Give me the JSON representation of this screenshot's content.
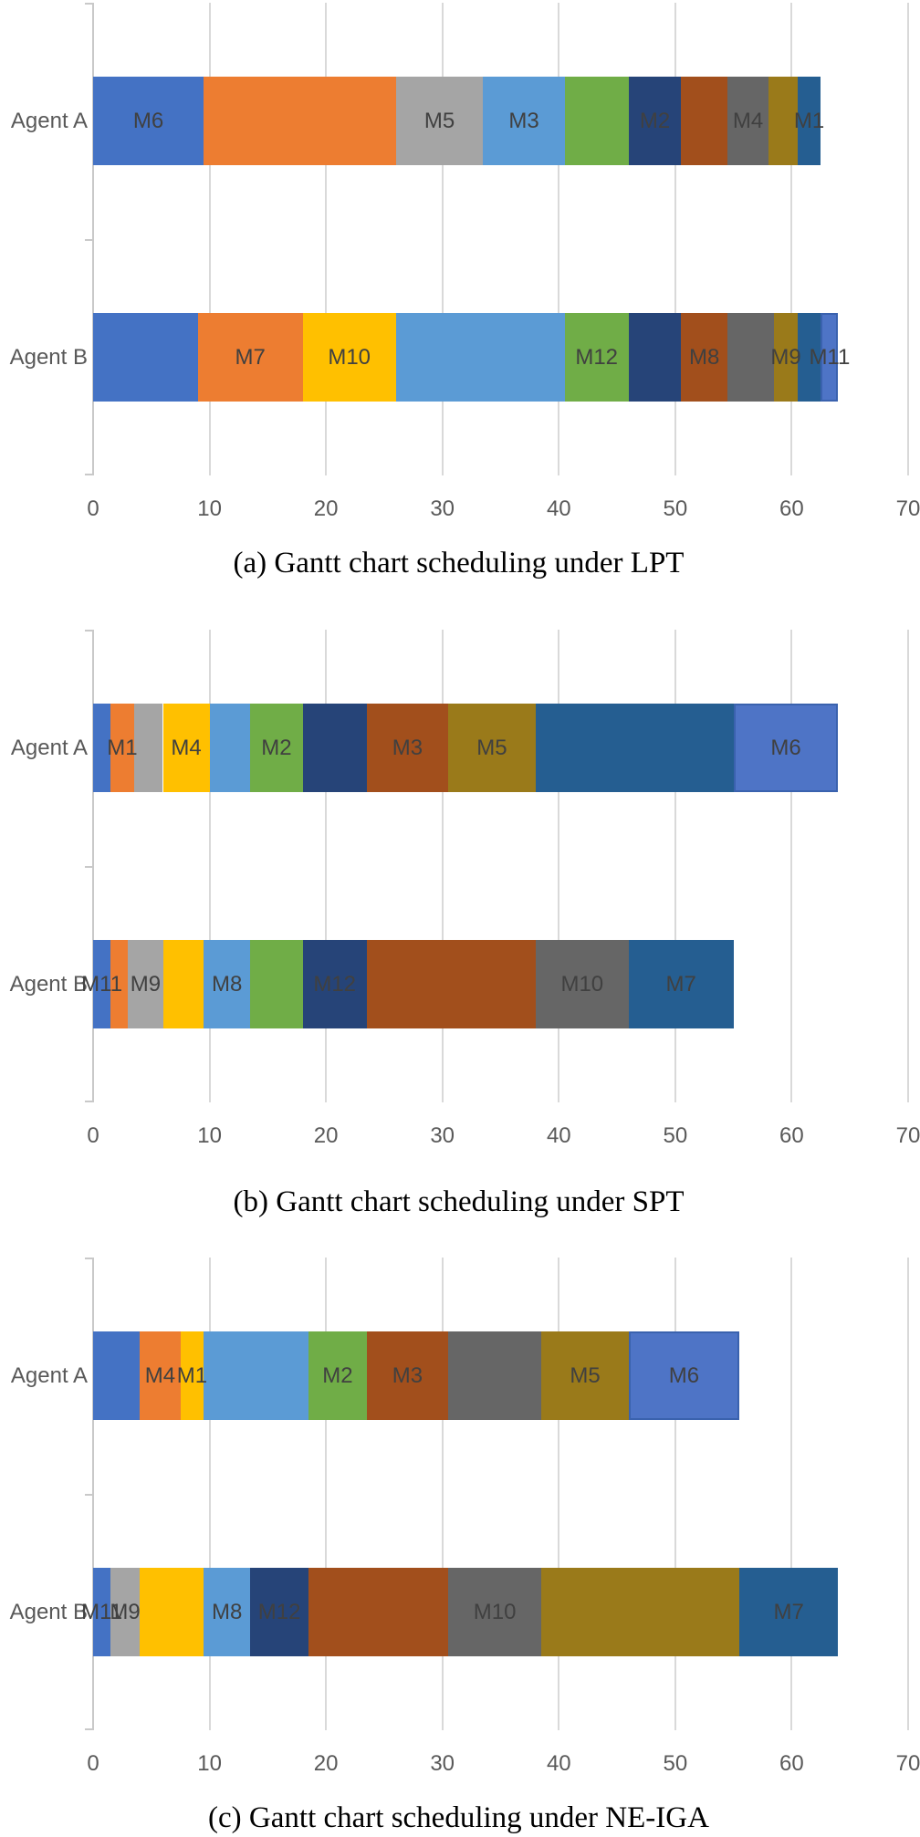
{
  "page_background": "#FFFFFF",
  "palette": {
    "blue": "#4472C4",
    "orange": "#ED7D31",
    "gray": "#A5A5A5",
    "yellow": "#FFC000",
    "lightblue": "#5B9BD5",
    "green": "#70AD47",
    "navy": "#264478",
    "darkred": "#A24F1C",
    "darkgray": "#666666",
    "olive": "#9A7A1A",
    "steel": "#255E91",
    "blue2": "#4E74C6",
    "gridline": "#D9D9D9",
    "axis": "#C9C9C9",
    "segment_label_text": "#404040",
    "axis_text": "#595959",
    "caption_text": "#000000"
  },
  "chart_data": [
    {
      "id": "a",
      "type": "bar",
      "stacked": true,
      "orientation": "horizontal",
      "title": "(a) Gantt chart scheduling under LPT",
      "xlim": [
        0,
        70
      ],
      "xticks": [
        0,
        10,
        20,
        30,
        40,
        50,
        60,
        70
      ],
      "grid": true,
      "legend": "none",
      "categories": [
        "Agent A",
        "Agent B"
      ],
      "bars": [
        {
          "category": "Agent A",
          "segments": [
            {
              "label": "M6",
              "color": "blue",
              "start": 0,
              "end": 9.5
            },
            {
              "label": "",
              "color": "orange",
              "start": 9.5,
              "end": 26
            },
            {
              "label": "M5",
              "color": "gray",
              "start": 26,
              "end": 33.5
            },
            {
              "label": "M3",
              "color": "lightblue",
              "start": 33.5,
              "end": 40.5
            },
            {
              "label": "",
              "color": "green",
              "start": 40.5,
              "end": 46
            },
            {
              "label": "M2",
              "color": "navy",
              "start": 46,
              "end": 50.5
            },
            {
              "label": "",
              "color": "darkred",
              "start": 50.5,
              "end": 54.5
            },
            {
              "label": "M4",
              "color": "darkgray",
              "start": 54.5,
              "end": 58
            },
            {
              "label": "",
              "color": "olive",
              "start": 58,
              "end": 60.5
            },
            {
              "label": "M1",
              "color": "steel",
              "start": 60.5,
              "end": 62.5
            }
          ]
        },
        {
          "category": "Agent B",
          "segments": [
            {
              "label": "",
              "color": "blue",
              "start": 0,
              "end": 9
            },
            {
              "label": "M7",
              "color": "orange",
              "start": 9,
              "end": 18
            },
            {
              "label": "M10",
              "color": "yellow",
              "start": 18,
              "end": 26
            },
            {
              "label": "",
              "color": "lightblue",
              "start": 26,
              "end": 40.5
            },
            {
              "label": "M12",
              "color": "green",
              "start": 40.5,
              "end": 46
            },
            {
              "label": "",
              "color": "navy",
              "start": 46,
              "end": 50.5
            },
            {
              "label": "M8",
              "color": "darkred",
              "start": 50.5,
              "end": 54.5
            },
            {
              "label": "",
              "color": "darkgray",
              "start": 54.5,
              "end": 58.5
            },
            {
              "label": "M9",
              "color": "olive",
              "start": 58.5,
              "end": 60.5
            },
            {
              "label": "",
              "color": "steel",
              "start": 60.5,
              "end": 62.5
            },
            {
              "label": "M11",
              "color": "blue2",
              "start": 62.5,
              "end": 64
            }
          ]
        }
      ]
    },
    {
      "id": "b",
      "type": "bar",
      "stacked": true,
      "orientation": "horizontal",
      "title": "(b) Gantt chart scheduling under SPT",
      "xlim": [
        0,
        70
      ],
      "xticks": [
        0,
        10,
        20,
        30,
        40,
        50,
        60,
        70
      ],
      "grid": true,
      "legend": "none",
      "categories": [
        "Agent A",
        "Agent B"
      ],
      "bars": [
        {
          "category": "Agent A",
          "segments": [
            {
              "label": "",
              "color": "blue",
              "start": 0,
              "end": 1.5
            },
            {
              "label": "M1",
              "color": "orange",
              "start": 1.5,
              "end": 3.5
            },
            {
              "label": "",
              "color": "gray",
              "start": 3.5,
              "end": 6
            },
            {
              "label": "M4",
              "color": "yellow",
              "start": 6,
              "end": 10
            },
            {
              "label": "",
              "color": "lightblue",
              "start": 10,
              "end": 13.5
            },
            {
              "label": "M2",
              "color": "green",
              "start": 13.5,
              "end": 18
            },
            {
              "label": "",
              "color": "navy",
              "start": 18,
              "end": 23.5
            },
            {
              "label": "M3",
              "color": "darkred",
              "start": 23.5,
              "end": 30.5
            },
            {
              "label": "M5",
              "color": "olive",
              "start": 30.5,
              "end": 38
            },
            {
              "label": "",
              "color": "steel",
              "start": 38,
              "end": 55
            },
            {
              "label": "M6",
              "color": "blue2",
              "start": 55,
              "end": 64
            }
          ]
        },
        {
          "category": "Agent B",
          "segments": [
            {
              "label": "M11",
              "color": "blue",
              "start": 0,
              "end": 1.5
            },
            {
              "label": "",
              "color": "orange",
              "start": 1.5,
              "end": 3
            },
            {
              "label": "M9",
              "color": "gray",
              "start": 3,
              "end": 6
            },
            {
              "label": "",
              "color": "yellow",
              "start": 6,
              "end": 9.5
            },
            {
              "label": "M8",
              "color": "lightblue",
              "start": 9.5,
              "end": 13.5
            },
            {
              "label": "",
              "color": "green",
              "start": 13.5,
              "end": 18
            },
            {
              "label": "M12",
              "color": "navy",
              "start": 18,
              "end": 23.5
            },
            {
              "label": "",
              "color": "darkred",
              "start": 23.5,
              "end": 38
            },
            {
              "label": "M10",
              "color": "darkgray",
              "start": 38,
              "end": 46
            },
            {
              "label": "M7",
              "color": "steel",
              "start": 46,
              "end": 55
            }
          ]
        }
      ]
    },
    {
      "id": "c",
      "type": "bar",
      "stacked": true,
      "orientation": "horizontal",
      "title": "(c) Gantt chart scheduling under NE-IGA",
      "xlim": [
        0,
        70
      ],
      "xticks": [
        0,
        10,
        20,
        30,
        40,
        50,
        60,
        70
      ],
      "grid": true,
      "legend": "none",
      "categories": [
        "Agent A",
        "Agent B"
      ],
      "bars": [
        {
          "category": "Agent A",
          "segments": [
            {
              "label": "",
              "color": "blue",
              "start": 0,
              "end": 4
            },
            {
              "label": "M4",
              "color": "orange",
              "start": 4,
              "end": 7.5
            },
            {
              "label": "M1",
              "color": "yellow",
              "start": 7.5,
              "end": 9.5
            },
            {
              "label": "",
              "color": "lightblue",
              "start": 9.5,
              "end": 18.5
            },
            {
              "label": "M2",
              "color": "green",
              "start": 18.5,
              "end": 23.5
            },
            {
              "label": "M3",
              "color": "darkred",
              "start": 23.5,
              "end": 30.5
            },
            {
              "label": "",
              "color": "darkgray",
              "start": 30.5,
              "end": 38.5
            },
            {
              "label": "M5",
              "color": "olive",
              "start": 38.5,
              "end": 46
            },
            {
              "label": "M6",
              "color": "blue2",
              "start": 46,
              "end": 55.5
            }
          ]
        },
        {
          "category": "Agent B",
          "segments": [
            {
              "label": "M11",
              "color": "blue",
              "start": 0,
              "end": 1.5
            },
            {
              "label": "M9",
              "color": "gray",
              "start": 1.5,
              "end": 4
            },
            {
              "label": "",
              "color": "yellow",
              "start": 4,
              "end": 9.5
            },
            {
              "label": "M8",
              "color": "lightblue",
              "start": 9.5,
              "end": 13.5
            },
            {
              "label": "M12",
              "color": "navy",
              "start": 13.5,
              "end": 18.5
            },
            {
              "label": "",
              "color": "darkred",
              "start": 18.5,
              "end": 30.5
            },
            {
              "label": "M10",
              "color": "darkgray",
              "start": 30.5,
              "end": 38.5
            },
            {
              "label": "",
              "color": "olive",
              "start": 38.5,
              "end": 55.5
            },
            {
              "label": "M7",
              "color": "steel",
              "start": 55.5,
              "end": 64
            }
          ]
        }
      ]
    }
  ]
}
